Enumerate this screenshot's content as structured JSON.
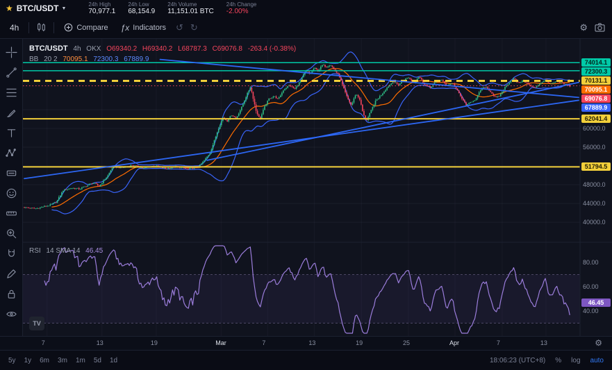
{
  "topbar": {
    "symbol": "BTC/USDT",
    "stats": [
      {
        "id": "high",
        "label": "24h High",
        "value": "70,977.1",
        "color": "#e8ebf2"
      },
      {
        "id": "low",
        "label": "24h Low",
        "value": "68,154.9",
        "color": "#e8ebf2"
      },
      {
        "id": "volume",
        "label": "24h Volume",
        "value": "11,151.01 BTC",
        "color": "#e8ebf2"
      },
      {
        "id": "change",
        "label": "24h Change",
        "value": "-2.00%",
        "color": "#f6455d"
      }
    ]
  },
  "toolbar": {
    "interval": "4h",
    "compare_label": "Compare",
    "indicators_label": "Indicators"
  },
  "left_toolbar": {
    "tools": [
      "crosshair",
      "trend-line",
      "fib-retracement",
      "brush",
      "text",
      "xabcd-pattern",
      "forecast",
      "emoji",
      "measure",
      "zoom-in",
      "magnet",
      "draw",
      "lock",
      "eye"
    ]
  },
  "legend": {
    "symbol": "BTC/USDT",
    "interval": "4h",
    "exchange": "OKX",
    "ohlc": {
      "o": "O69340.2",
      "h": "H69340.2",
      "l": "L68787.3",
      "c": "C69076.8",
      "chg": "-263.4 (-0.38%)"
    },
    "bb": {
      "name": "BB",
      "params": "20 2",
      "basis": "70095.1",
      "upper": "72300.3",
      "lower": "67889.9"
    },
    "rsi": {
      "name": "RSI",
      "params": "14 SMA 14",
      "value": "46.45"
    }
  },
  "bottombar": {
    "ranges": [
      "5y",
      "1y",
      "6m",
      "3m",
      "1m",
      "5d",
      "1d"
    ],
    "clock": "18:06:23 (UTC+8)",
    "percent": "%",
    "log": "log",
    "auto": "auto"
  },
  "chart_data": {
    "type": "candlestick+rsi",
    "symbol": "BTC/USDT",
    "interval": "4h",
    "exchange": "OKX",
    "last_candle": {
      "o": 69340.2,
      "h": 69340.2,
      "l": 68787.3,
      "c": 69076.8,
      "change": -263.4,
      "change_pct": "-0.38%"
    },
    "bb_values": {
      "basis": 70095.1,
      "upper": 72300.3,
      "lower": 67889.9
    },
    "candle_colors": {
      "up": "#2ebd85",
      "down": "#f6455d"
    },
    "price_axis_ticks": [
      64000,
      60000,
      56000,
      52000,
      48000,
      44000,
      40000
    ],
    "time_axis": [
      [
        0.041,
        "7"
      ],
      [
        0.14,
        "13"
      ],
      [
        0.238,
        "19"
      ],
      [
        0.355,
        "Mar"
      ],
      [
        0.439,
        "7"
      ],
      [
        0.523,
        "13"
      ],
      [
        0.608,
        "19"
      ],
      [
        0.693,
        "25"
      ],
      [
        0.777,
        "Apr"
      ],
      [
        0.862,
        "7"
      ],
      [
        0.941,
        "13"
      ]
    ],
    "price_tags": [
      {
        "price": 74014.1,
        "label": "74014.1",
        "bg": "#00c9a7",
        "fg": "#03261e"
      },
      {
        "price": 72300.3,
        "label": "72300.3",
        "bg": "#00c9a7",
        "fg": "#03261e"
      },
      {
        "price": 70131.1,
        "label": "70131.1",
        "bg": "#f2cf3a",
        "fg": "#241f05"
      },
      {
        "price": 70095.1,
        "label": "70095.1",
        "bg": "#ff6d00",
        "fg": "#ffffff"
      },
      {
        "price": 69076.8,
        "label": "69076.8",
        "bg": "#f6455d",
        "fg": "#ffffff"
      },
      {
        "price": 67889.9,
        "label": "67889.9",
        "bg": "#3964fa",
        "fg": "#ffffff"
      },
      {
        "price": 62041.4,
        "label": "62041.4",
        "bg": "#f2cf3a",
        "fg": "#241f05"
      },
      {
        "price": 51794.5,
        "label": "51794.5",
        "bg": "#f2cf3a",
        "fg": "#241f05"
      }
    ],
    "h_lines": [
      {
        "price": 74014.1,
        "color": "#00c9a7",
        "style": "solid",
        "width": 1.5
      },
      {
        "price": 72300.3,
        "color": "#00c9a7",
        "style": "solid",
        "width": 1.5
      },
      {
        "price": 70131.1,
        "color": "#f2cf3a",
        "style": "dashed",
        "width": 3
      },
      {
        "price": 69076.8,
        "color": "#f6455d",
        "style": "dotted",
        "width": 1
      },
      {
        "price": 62041.4,
        "color": "#f2cf3a",
        "style": "solid",
        "width": 2
      },
      {
        "price": 51794.5,
        "color": "#f2cf3a",
        "style": "solid",
        "width": 2
      }
    ],
    "trendlines": [
      {
        "x1f": 0.0,
        "p1": 49300,
        "x2f": 1.0,
        "p2": 66000,
        "color": "#2e6bff"
      },
      {
        "x1f": 0.33,
        "p1": 53200,
        "x2f": 1.0,
        "p2": 69800,
        "color": "#2e6bff"
      },
      {
        "x1f": 0.245,
        "p1": 74700,
        "x2f": 1.0,
        "p2": 66600,
        "color": "#2e6bff"
      }
    ],
    "bb": {
      "period": 20,
      "stdev": 2,
      "basis_color": "#ff6d00",
      "band_color": "#3964fa"
    },
    "rsi": {
      "period": 14,
      "last": 46.45,
      "color": "#9b7ddb",
      "band": [
        30,
        70
      ],
      "ticks": [
        80,
        60,
        40
      ]
    },
    "price_path": [
      [
        0.0,
        43150
      ],
      [
        0.02,
        42900
      ],
      [
        0.045,
        43600
      ],
      [
        0.058,
        44300
      ],
      [
        0.07,
        46800
      ],
      [
        0.085,
        47300
      ],
      [
        0.1,
        47100
      ],
      [
        0.115,
        47900
      ],
      [
        0.124,
        48400
      ],
      [
        0.135,
        47700
      ],
      [
        0.15,
        49800
      ],
      [
        0.16,
        51900
      ],
      [
        0.175,
        51600
      ],
      [
        0.195,
        52200
      ],
      [
        0.215,
        51500
      ],
      [
        0.235,
        52100
      ],
      [
        0.255,
        51400
      ],
      [
        0.275,
        51900
      ],
      [
        0.295,
        51300
      ],
      [
        0.315,
        51900
      ],
      [
        0.325,
        53200
      ],
      [
        0.335,
        54800
      ],
      [
        0.342,
        57100
      ],
      [
        0.35,
        59900
      ],
      [
        0.358,
        62300
      ],
      [
        0.366,
        61600
      ],
      [
        0.374,
        62900
      ],
      [
        0.382,
        62100
      ],
      [
        0.392,
        64500
      ],
      [
        0.4,
        66800
      ],
      [
        0.408,
        68900
      ],
      [
        0.418,
        63800
      ],
      [
        0.425,
        61900
      ],
      [
        0.433,
        64500
      ],
      [
        0.441,
        66300
      ],
      [
        0.45,
        66900
      ],
      [
        0.458,
        66200
      ],
      [
        0.468,
        68300
      ],
      [
        0.478,
        69200
      ],
      [
        0.488,
        68400
      ],
      [
        0.498,
        70100
      ],
      [
        0.508,
        72400
      ],
      [
        0.515,
        71600
      ],
      [
        0.523,
        72900
      ],
      [
        0.53,
        72200
      ],
      [
        0.538,
        73600
      ],
      [
        0.545,
        73100
      ],
      [
        0.552,
        73650
      ],
      [
        0.56,
        72400
      ],
      [
        0.568,
        71200
      ],
      [
        0.575,
        68800
      ],
      [
        0.583,
        66400
      ],
      [
        0.59,
        64900
      ],
      [
        0.598,
        67400
      ],
      [
        0.605,
        66200
      ],
      [
        0.612,
        62800
      ],
      [
        0.618,
        61800
      ],
      [
        0.626,
        63900
      ],
      [
        0.634,
        65900
      ],
      [
        0.645,
        67300
      ],
      [
        0.655,
        68800
      ],
      [
        0.665,
        70000
      ],
      [
        0.675,
        69300
      ],
      [
        0.685,
        70400
      ],
      [
        0.693,
        70900
      ],
      [
        0.702,
        69700
      ],
      [
        0.712,
        71100
      ],
      [
        0.722,
        69400
      ],
      [
        0.732,
        68700
      ],
      [
        0.742,
        69900
      ],
      [
        0.752,
        70400
      ],
      [
        0.762,
        69100
      ],
      [
        0.772,
        69700
      ],
      [
        0.78,
        68300
      ],
      [
        0.79,
        66200
      ],
      [
        0.798,
        64900
      ],
      [
        0.806,
        65700
      ],
      [
        0.815,
        66300
      ],
      [
        0.824,
        68400
      ],
      [
        0.833,
        68900
      ],
      [
        0.842,
        67700
      ],
      [
        0.85,
        66500
      ],
      [
        0.858,
        67000
      ],
      [
        0.866,
        68600
      ],
      [
        0.875,
        69900
      ],
      [
        0.883,
        70600
      ],
      [
        0.891,
        69700
      ],
      [
        0.9,
        70200
      ],
      [
        0.91,
        69300
      ],
      [
        0.92,
        68600
      ],
      [
        0.93,
        69600
      ],
      [
        0.94,
        70300
      ],
      [
        0.95,
        69500
      ],
      [
        0.96,
        70000
      ],
      [
        0.97,
        69600
      ],
      [
        0.978,
        69340
      ],
      [
        0.984,
        69077
      ]
    ]
  }
}
